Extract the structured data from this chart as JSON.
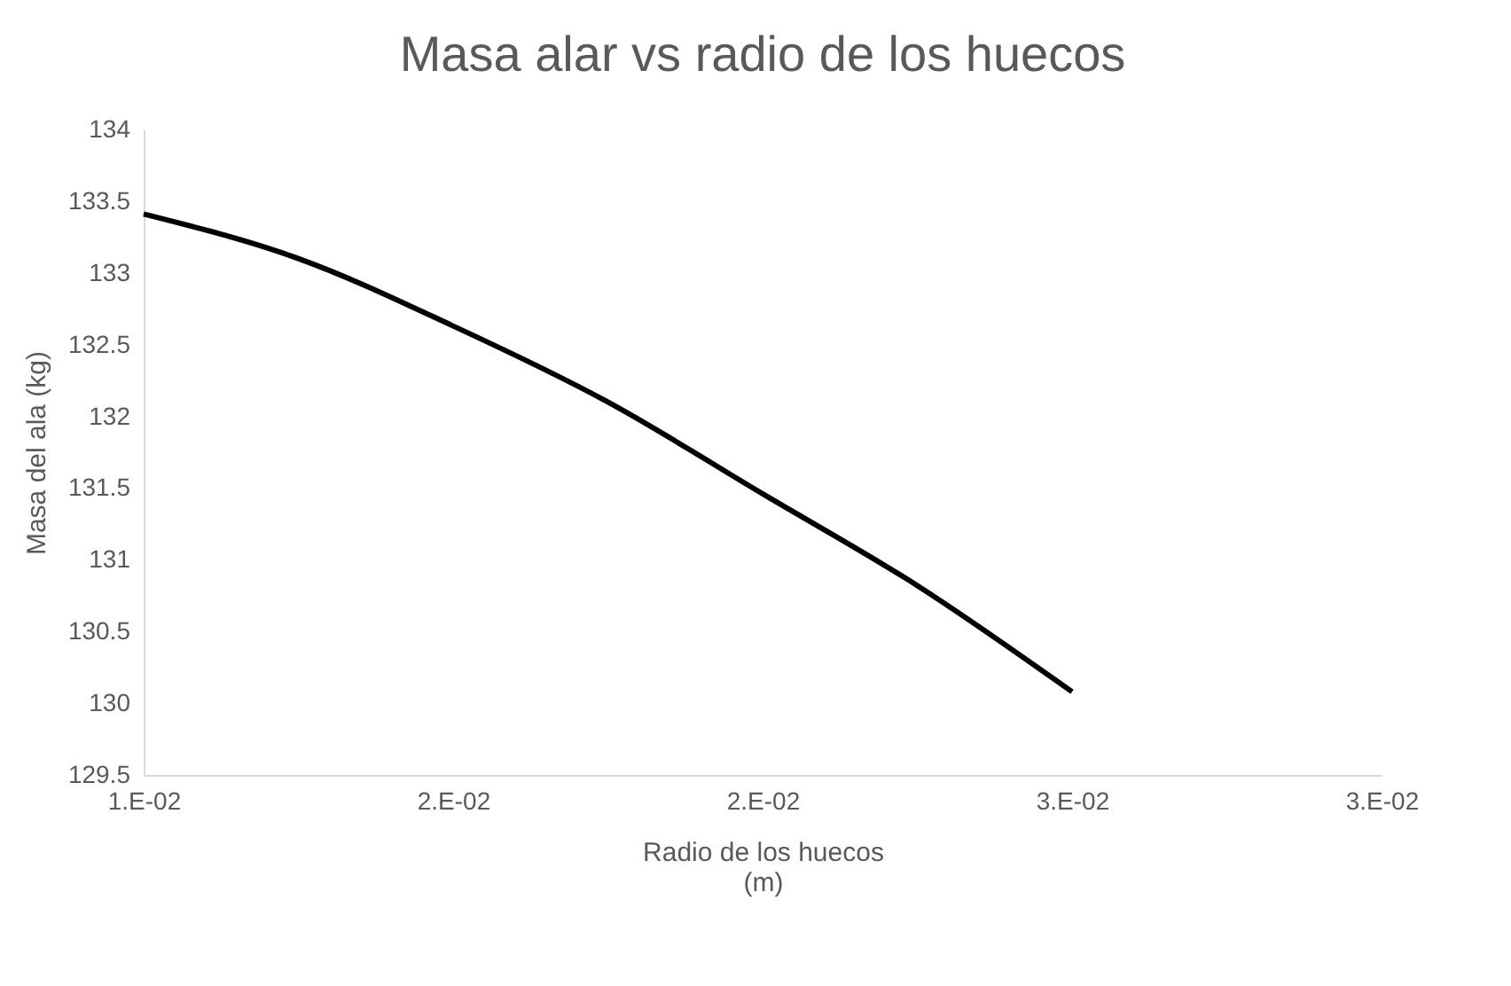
{
  "chart_data": {
    "type": "line",
    "title": "Masa alar vs radio de los huecos",
    "xlabel": "Radio de los huecos\n(m)",
    "ylabel": "Masa del ala (kg)",
    "categories": [
      "1.E-02",
      null,
      "2.E-02",
      null,
      "2.E-02",
      null,
      "3.E-02",
      null,
      "3.E-02"
    ],
    "series": [
      {
        "color": "#000000",
        "values": [
          133.41,
          133.1,
          132.63,
          132.1,
          131.46,
          130.82,
          130.08,
          null,
          null
        ]
      }
    ],
    "ylim": [
      129.5,
      134
    ],
    "yticks": [
      129.5,
      130,
      130.5,
      131,
      131.5,
      132,
      132.5,
      133,
      133.5,
      134
    ],
    "grid": false,
    "marker": "none",
    "line_style": "solid"
  }
}
